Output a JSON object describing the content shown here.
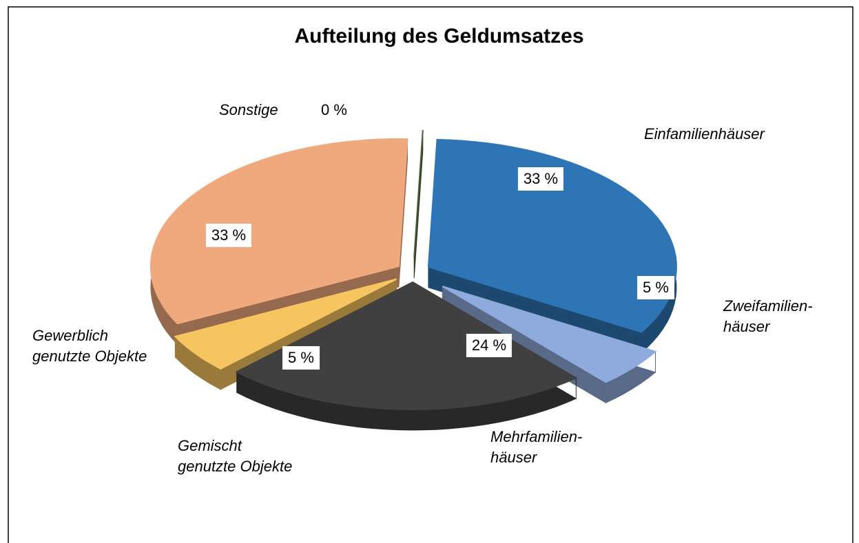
{
  "chart_data": {
    "type": "pie",
    "title": "Aufteilung des Geldumsatzes",
    "categories": [
      "Einfamilienhäuser",
      "Zweifamilien-\nhäuser",
      "Mehrfamilien-\nhäuser",
      "Gemischt\ngenutzte Objekte",
      "Gewerblich\ngenutzte Objekte",
      "Sonstige"
    ],
    "values": [
      33,
      5,
      24,
      5,
      33,
      0
    ],
    "value_labels": [
      "33 %",
      "5 %",
      "24 %",
      "5 %",
      "33 %",
      "0 %"
    ],
    "colors": [
      "#2e75b6",
      "#8faadc",
      "#404040",
      "#f7c55f",
      "#f0a97d",
      "#4a5e35"
    ]
  }
}
